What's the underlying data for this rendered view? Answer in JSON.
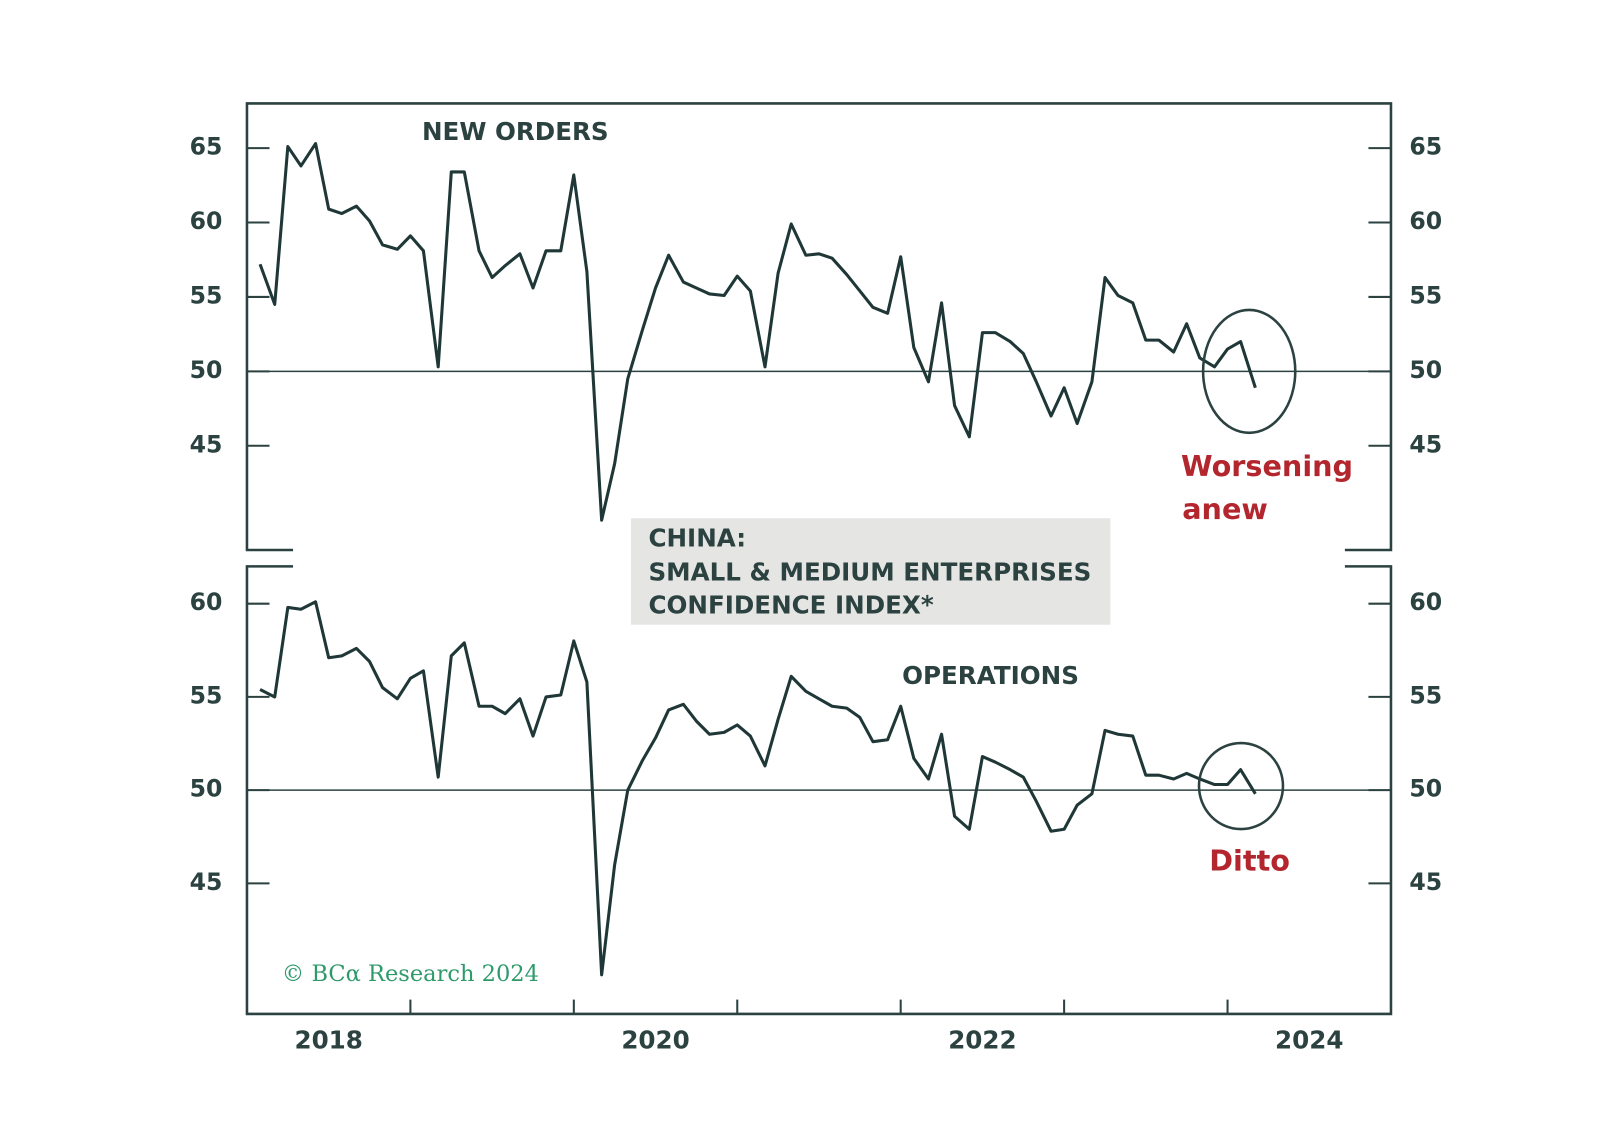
{
  "title": [
    "CHINA:",
    "SMALL & MEDIUM ENTERPRISES",
    "CONFIDENCE INDEX*"
  ],
  "source": "© BCα Research 2024",
  "chart_data": [
    {
      "type": "line",
      "label": "NEW ORDERS",
      "annotation": [
        "Worsening",
        "anew"
      ],
      "color": "#1f3837",
      "hline": 50,
      "xlim": [
        2018,
        2025
      ],
      "ylim": [
        38,
        68
      ],
      "yticks": [
        45,
        50,
        55,
        60,
        65
      ],
      "x": [
        2018.08,
        2018.17,
        2018.25,
        2018.33,
        2018.42,
        2018.5,
        2018.58,
        2018.67,
        2018.75,
        2018.83,
        2018.92,
        2019,
        2019.08,
        2019.17,
        2019.25,
        2019.33,
        2019.42,
        2019.5,
        2019.58,
        2019.67,
        2019.75,
        2019.83,
        2019.92,
        2020,
        2020.08,
        2020.17,
        2020.25,
        2020.33,
        2020.42,
        2020.5,
        2020.58,
        2020.67,
        2020.75,
        2020.83,
        2020.92,
        2021,
        2021.08,
        2021.17,
        2021.25,
        2021.33,
        2021.42,
        2021.5,
        2021.58,
        2021.67,
        2021.75,
        2021.83,
        2021.92,
        2022,
        2022.08,
        2022.17,
        2022.25,
        2022.33,
        2022.42,
        2022.5,
        2022.58,
        2022.67,
        2022.75,
        2022.83,
        2022.92,
        2023,
        2023.08,
        2023.17,
        2023.25,
        2023.33,
        2023.42,
        2023.5,
        2023.58,
        2023.67,
        2023.75,
        2023.83,
        2023.92,
        2024,
        2024.08,
        2024.17
      ],
      "values": [
        57.2,
        54.5,
        65.1,
        63.8,
        65.3,
        60.9,
        60.6,
        61.1,
        60.1,
        58.5,
        58.2,
        59.1,
        58.1,
        50.3,
        63.4,
        63.4,
        58.1,
        56.3,
        57.1,
        57.9,
        55.6,
        58.1,
        58.1,
        63.2,
        56.7,
        40.0,
        43.8,
        49.5,
        52.8,
        55.6,
        57.8,
        56.0,
        55.6,
        55.2,
        55.1,
        56.4,
        55.4,
        50.3,
        56.6,
        59.9,
        57.8,
        57.9,
        57.6,
        56.5,
        55.4,
        54.3,
        53.9,
        57.7,
        51.6,
        49.3,
        54.6,
        47.7,
        45.6,
        52.6,
        52.6,
        52.0,
        51.2,
        49.3,
        47.0,
        48.9,
        46.5,
        49.3,
        56.3,
        55.1,
        54.6,
        52.1,
        52.1,
        51.3,
        53.2,
        50.9,
        50.3,
        51.5,
        52.0,
        48.9
      ]
    },
    {
      "type": "line",
      "label": "OPERATIONS",
      "annotation": [
        "Ditto"
      ],
      "color": "#1f3837",
      "hline": 50,
      "xlim": [
        2018,
        2025
      ],
      "ylim": [
        38,
        62
      ],
      "yticks": [
        45,
        50,
        55,
        60
      ],
      "xticks": [
        {
          "value": 2018.5,
          "label": "2018"
        },
        {
          "value": 2020.5,
          "label": "2020"
        },
        {
          "value": 2022.5,
          "label": "2022"
        },
        {
          "value": 2024.5,
          "label": "2024"
        }
      ],
      "xtick_marks": [
        2019,
        2020,
        2021,
        2022,
        2023,
        2024
      ],
      "x": [
        2018.08,
        2018.17,
        2018.25,
        2018.33,
        2018.42,
        2018.5,
        2018.58,
        2018.67,
        2018.75,
        2018.83,
        2018.92,
        2019,
        2019.08,
        2019.17,
        2019.25,
        2019.33,
        2019.42,
        2019.5,
        2019.58,
        2019.67,
        2019.75,
        2019.83,
        2019.92,
        2020,
        2020.08,
        2020.17,
        2020.25,
        2020.33,
        2020.42,
        2020.5,
        2020.58,
        2020.67,
        2020.75,
        2020.83,
        2020.92,
        2021,
        2021.08,
        2021.17,
        2021.25,
        2021.33,
        2021.42,
        2021.5,
        2021.58,
        2021.67,
        2021.75,
        2021.83,
        2021.92,
        2022,
        2022.08,
        2022.17,
        2022.25,
        2022.33,
        2022.42,
        2022.5,
        2022.58,
        2022.67,
        2022.75,
        2022.83,
        2022.92,
        2023,
        2023.08,
        2023.17,
        2023.25,
        2023.33,
        2023.42,
        2023.5,
        2023.58,
        2023.67,
        2023.75,
        2023.83,
        2023.92,
        2024,
        2024.08,
        2024.17
      ],
      "values": [
        55.4,
        55.0,
        59.8,
        59.7,
        60.1,
        57.1,
        57.2,
        57.6,
        56.9,
        55.5,
        54.9,
        56.0,
        56.4,
        50.7,
        57.2,
        57.9,
        54.5,
        54.5,
        54.1,
        54.9,
        52.9,
        55.0,
        55.1,
        58.0,
        55.8,
        40.1,
        46.0,
        50.0,
        51.6,
        52.8,
        54.3,
        54.6,
        53.7,
        53.0,
        53.1,
        53.5,
        52.9,
        51.3,
        53.8,
        56.1,
        55.3,
        54.9,
        54.5,
        54.4,
        53.9,
        52.6,
        52.7,
        54.5,
        51.7,
        50.6,
        53.0,
        48.6,
        47.9,
        51.8,
        51.5,
        51.1,
        50.7,
        49.4,
        47.8,
        47.9,
        49.2,
        49.8,
        53.2,
        53.0,
        52.9,
        50.8,
        50.8,
        50.6,
        50.9,
        50.6,
        50.3,
        50.3,
        51.1,
        49.8
      ]
    }
  ]
}
